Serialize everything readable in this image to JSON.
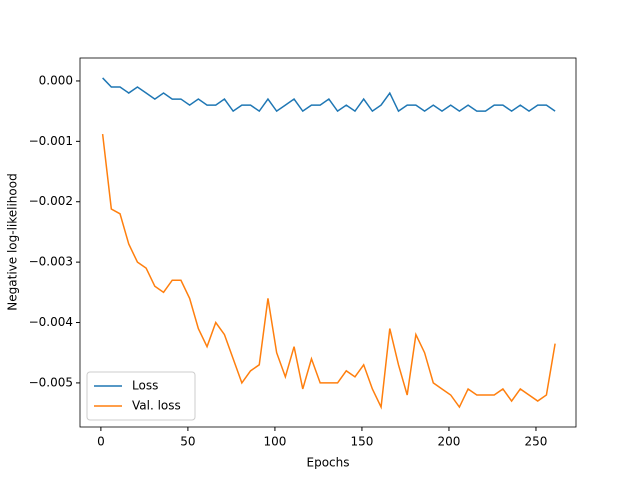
{
  "chart_data": {
    "type": "line",
    "xlabel": "Epochs",
    "ylabel": "Negative log-likelihood",
    "x": [
      1,
      6,
      11,
      16,
      21,
      26,
      31,
      36,
      41,
      46,
      51,
      56,
      61,
      66,
      71,
      76,
      81,
      86,
      91,
      96,
      101,
      106,
      111,
      116,
      121,
      126,
      131,
      136,
      141,
      146,
      151,
      156,
      161,
      166,
      171,
      176,
      181,
      186,
      191,
      196,
      201,
      206,
      211,
      216,
      221,
      226,
      231,
      236,
      241,
      246,
      251,
      256,
      261
    ],
    "series": [
      {
        "name": "Loss",
        "color": "#1f77b4",
        "values": [
          5e-05,
          -0.0001,
          -0.0001,
          -0.0002,
          -0.0001,
          -0.0002,
          -0.0003,
          -0.0002,
          -0.0003,
          -0.0003,
          -0.0004,
          -0.0003,
          -0.0004,
          -0.0004,
          -0.0003,
          -0.0005,
          -0.0004,
          -0.0004,
          -0.0005,
          -0.0003,
          -0.0005,
          -0.0004,
          -0.0003,
          -0.0005,
          -0.0004,
          -0.0004,
          -0.0003,
          -0.0005,
          -0.0004,
          -0.0005,
          -0.0003,
          -0.0005,
          -0.0004,
          -0.0002,
          -0.0005,
          -0.0004,
          -0.0004,
          -0.0005,
          -0.0004,
          -0.0005,
          -0.0004,
          -0.0005,
          -0.0004,
          -0.0005,
          -0.0005,
          -0.0004,
          -0.0004,
          -0.0005,
          -0.0004,
          -0.0005,
          -0.0004,
          -0.0004,
          -0.0005
        ]
      },
      {
        "name": "Val. loss",
        "color": "#ff7f0e",
        "values": [
          -0.00088,
          -0.00212,
          -0.0022,
          -0.0027,
          -0.003,
          -0.0031,
          -0.0034,
          -0.0035,
          -0.0033,
          -0.0033,
          -0.0036,
          -0.0041,
          -0.0044,
          -0.004,
          -0.0042,
          -0.0046,
          -0.005,
          -0.0048,
          -0.0047,
          -0.0036,
          -0.0045,
          -0.0049,
          -0.0044,
          -0.0051,
          -0.0046,
          -0.005,
          -0.005,
          -0.005,
          -0.0048,
          -0.0049,
          -0.0047,
          -0.0051,
          -0.0054,
          -0.0041,
          -0.0047,
          -0.0052,
          -0.0042,
          -0.0045,
          -0.005,
          -0.0051,
          -0.0052,
          -0.0054,
          -0.0051,
          -0.0052,
          -0.0052,
          -0.0052,
          -0.0051,
          -0.0053,
          -0.0051,
          -0.0052,
          -0.0053,
          -0.0052,
          -0.00435
        ]
      }
    ],
    "xlim": [
      -12,
      273
    ],
    "xticks": [
      0,
      50,
      100,
      150,
      200,
      250
    ],
    "ylim": [
      -0.00573,
      0.00038
    ],
    "yticks": [
      {
        "value": 0,
        "label": "0.000"
      },
      {
        "value": -0.001,
        "label": "−0.001"
      },
      {
        "value": -0.002,
        "label": "−0.002"
      },
      {
        "value": -0.003,
        "label": "−0.003"
      },
      {
        "value": -0.004,
        "label": "−0.004"
      },
      {
        "value": -0.005,
        "label": "−0.005"
      }
    ],
    "legend": "lower left",
    "grid": false
  }
}
